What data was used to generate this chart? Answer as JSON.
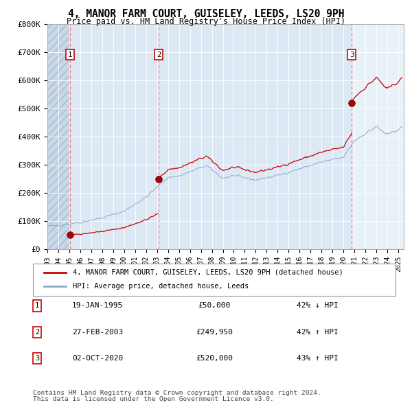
{
  "title": "4, MANOR FARM COURT, GUISELEY, LEEDS, LS20 9PH",
  "subtitle": "Price paid vs. HM Land Registry's House Price Index (HPI)",
  "transactions": [
    {
      "num": 1,
      "date_num": 1995.05,
      "price": 50000,
      "label": "19-JAN-1995",
      "price_str": "£50,000",
      "hpi_str": "42% ↓ HPI"
    },
    {
      "num": 2,
      "date_num": 2003.16,
      "price": 249950,
      "label": "27-FEB-2003",
      "price_str": "£249,950",
      "hpi_str": "42% ↑ HPI"
    },
    {
      "num": 3,
      "date_num": 2020.75,
      "price": 520000,
      "label": "02-OCT-2020",
      "price_str": "£520,000",
      "hpi_str": "43% ↑ HPI"
    }
  ],
  "legend_line1": "4, MANOR FARM COURT, GUISELEY, LEEDS, LS20 9PH (detached house)",
  "legend_line2": "HPI: Average price, detached house, Leeds",
  "footnote1": "Contains HM Land Registry data © Crown copyright and database right 2024.",
  "footnote2": "This data is licensed under the Open Government Licence v3.0.",
  "xmin": 1993.0,
  "xmax": 2025.5,
  "ymin": 0,
  "ymax": 800000,
  "yticks": [
    0,
    100000,
    200000,
    300000,
    400000,
    500000,
    600000,
    700000,
    800000
  ],
  "ytick_labels": [
    "£0",
    "£100K",
    "£200K",
    "£300K",
    "£400K",
    "£500K",
    "£600K",
    "£700K",
    "£800K"
  ],
  "red_line_color": "#cc0000",
  "blue_line_color": "#88aacc",
  "plot_bg_color": "#dde8f5",
  "hatch_bg_color": "#c8d8e8",
  "highlighted_bg": "#e8f0f8"
}
